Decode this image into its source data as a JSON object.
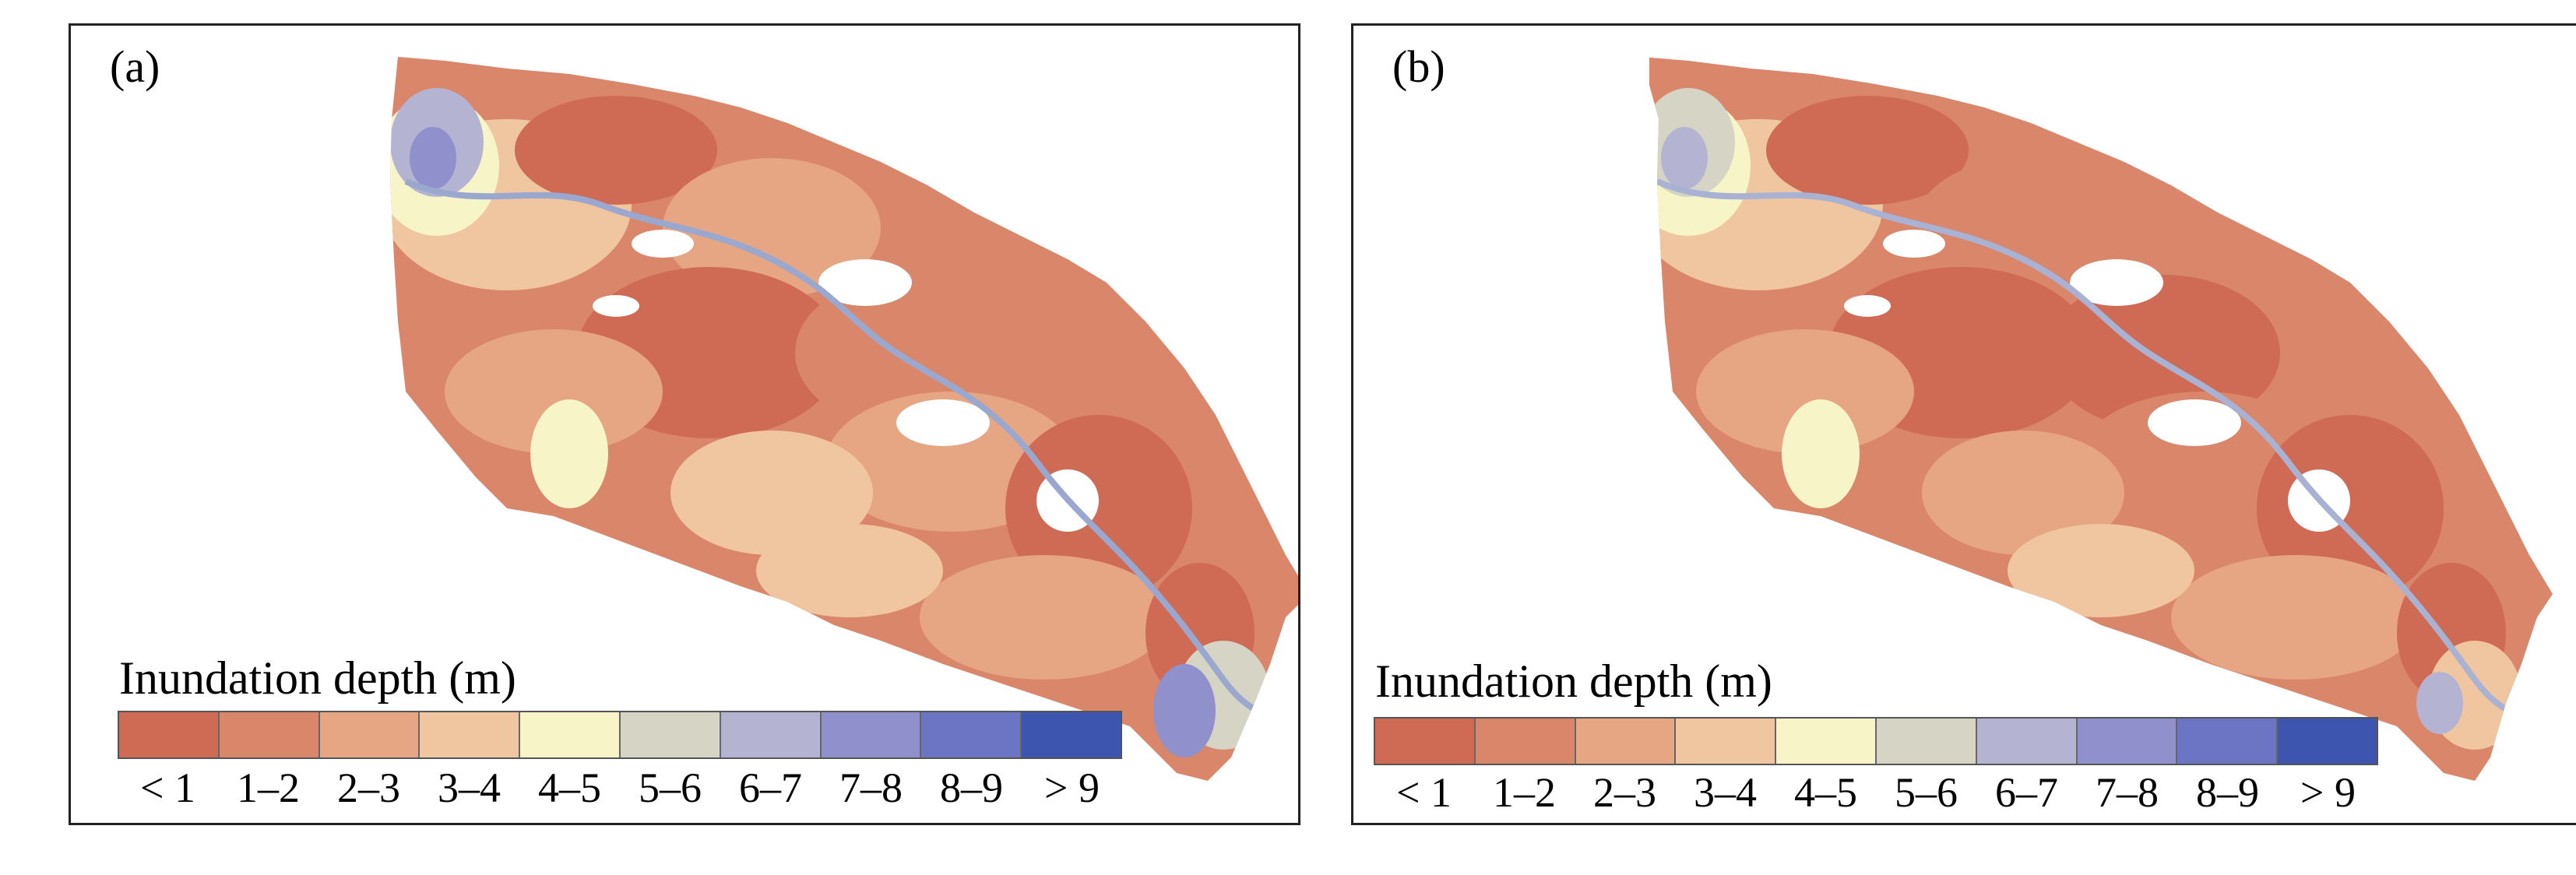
{
  "panels": [
    {
      "label": "(a)"
    },
    {
      "label": "(b)"
    }
  ],
  "legend": {
    "title": "Inundation depth (m)",
    "classes": [
      {
        "label": "< 1",
        "color": "#cf6a55"
      },
      {
        "label": "1–2",
        "color": "#d9866b"
      },
      {
        "label": "2–3",
        "color": "#e6a583"
      },
      {
        "label": "3–4",
        "color": "#efc69f"
      },
      {
        "label": "4–5",
        "color": "#f7f5c8"
      },
      {
        "label": "5–6",
        "color": "#d6d4c4"
      },
      {
        "label": "6–7",
        "color": "#b4b4d2"
      },
      {
        "label": "7–8",
        "color": "#9090cc"
      },
      {
        "label": "8–9",
        "color": "#6c74c4"
      },
      {
        "label": "> 9",
        "color": "#3e55b0"
      }
    ]
  }
}
